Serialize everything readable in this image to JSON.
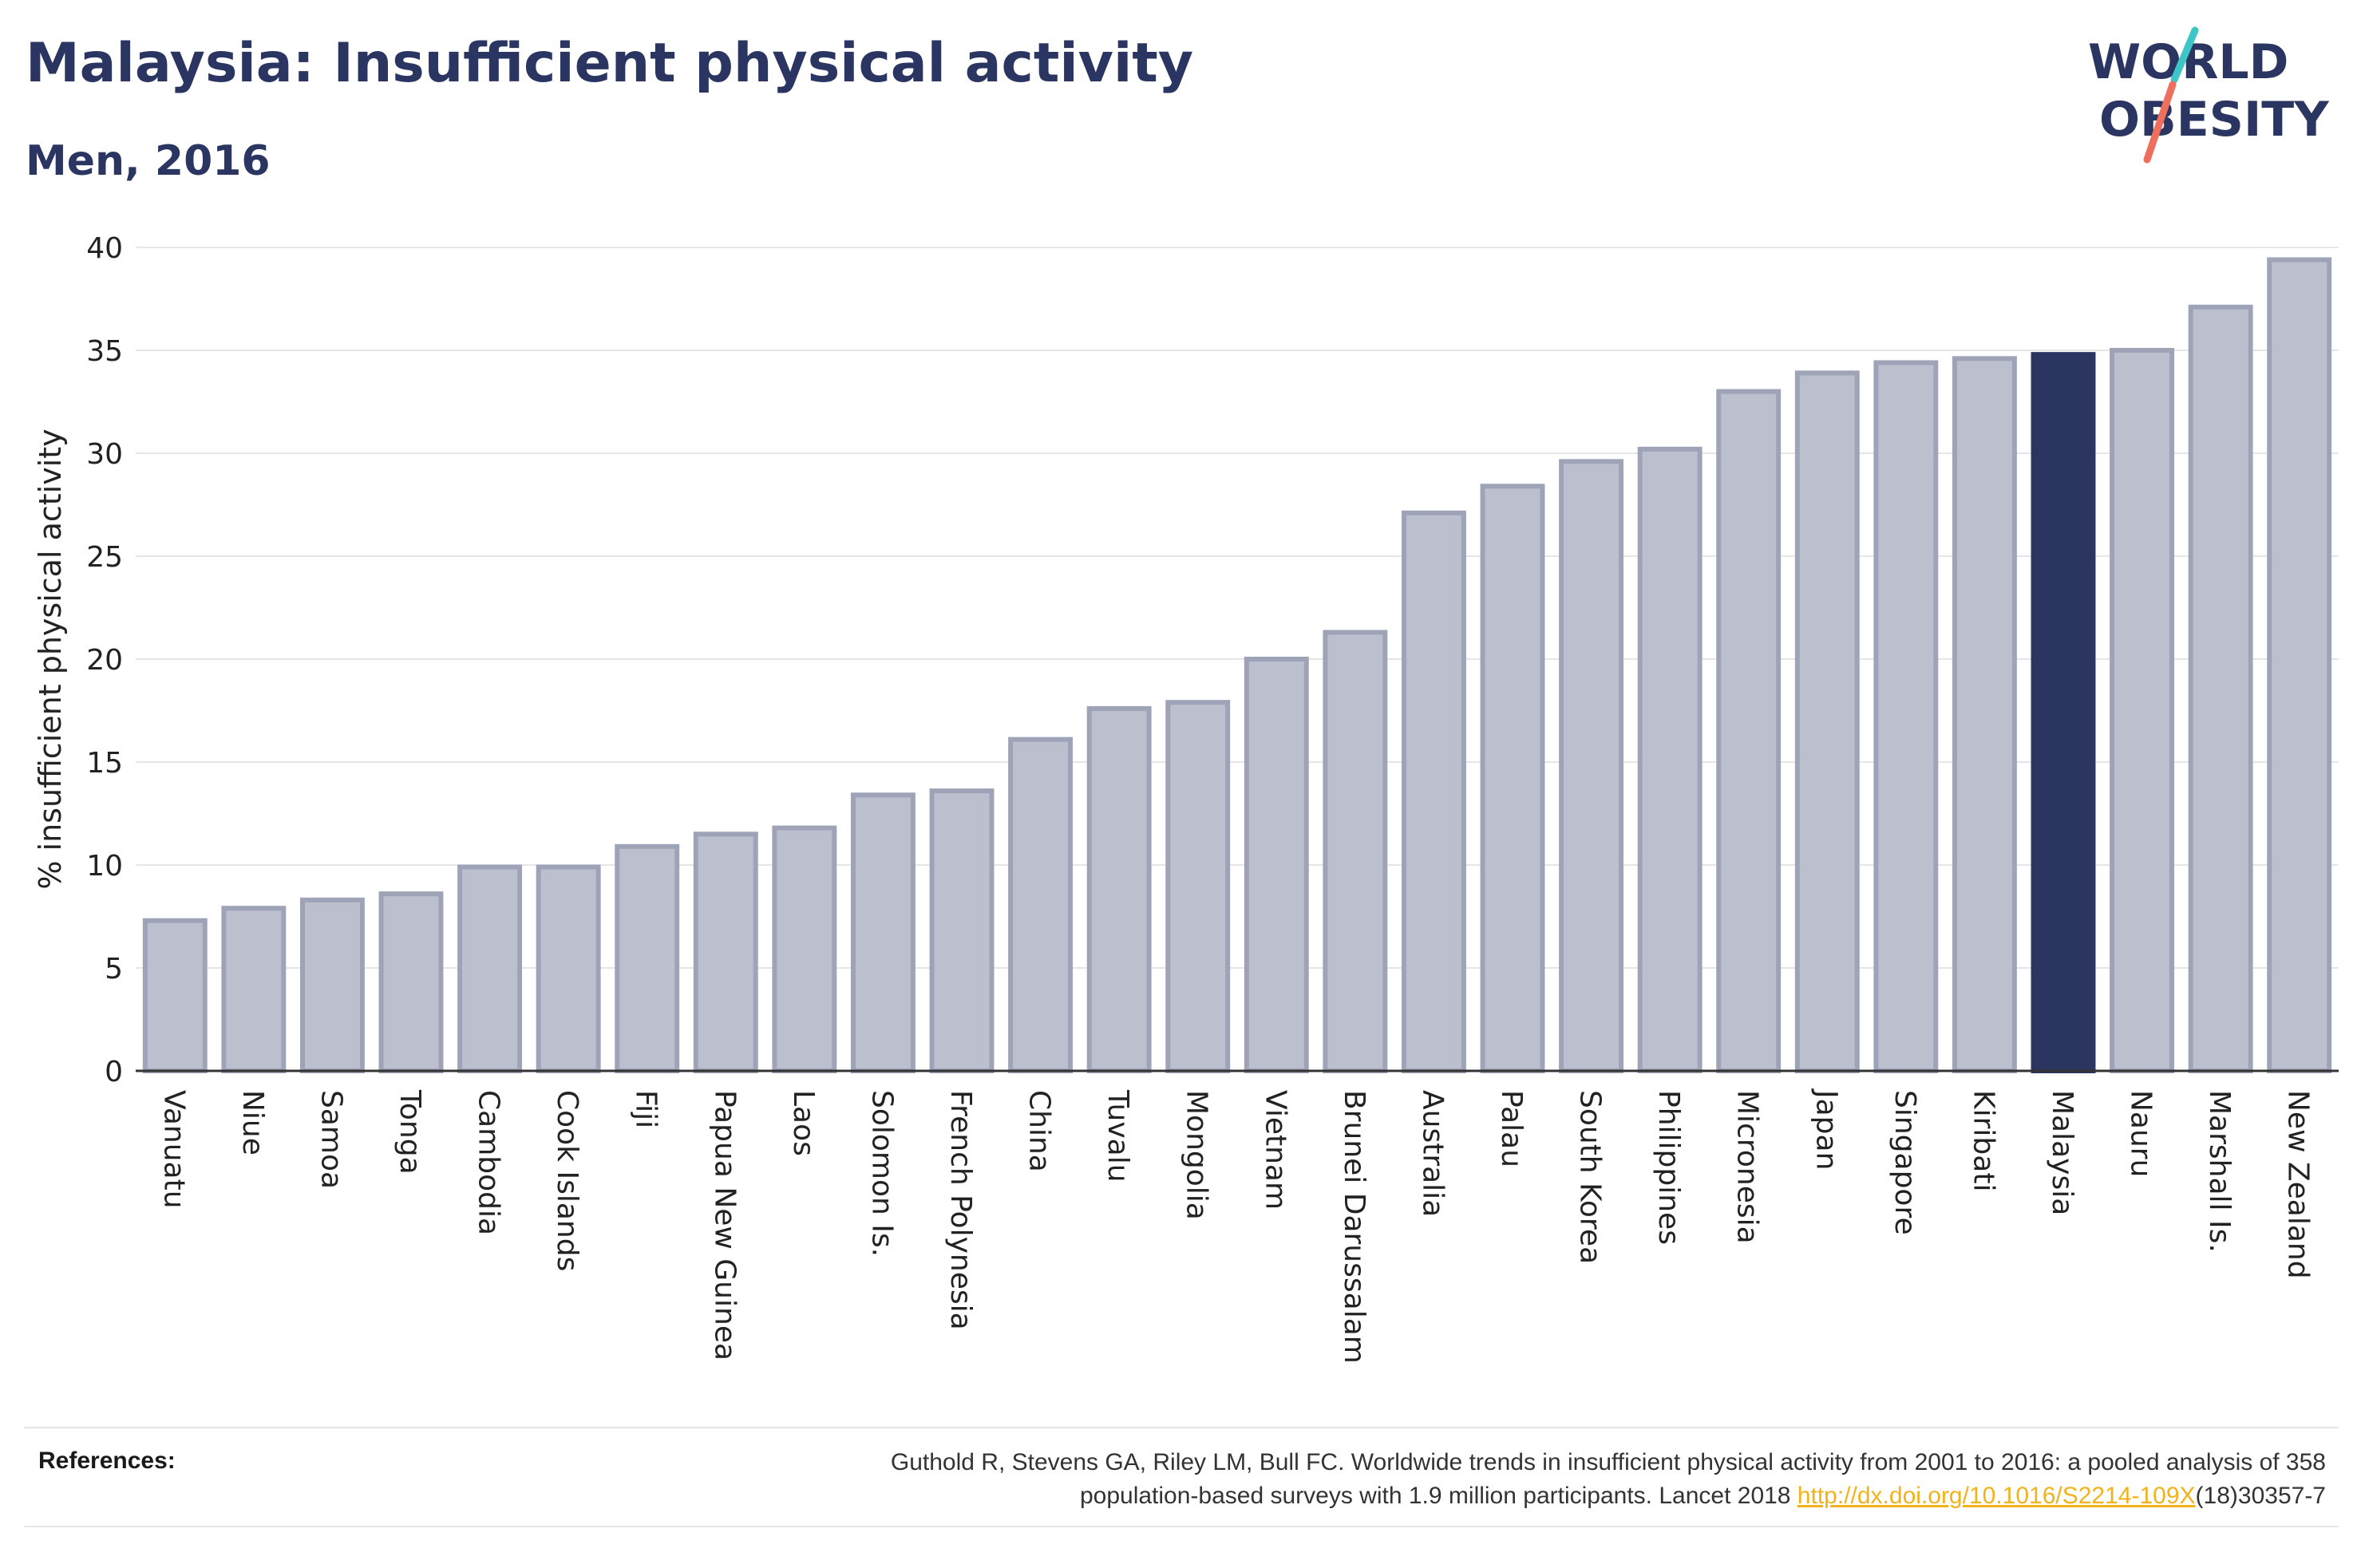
{
  "header": {
    "title": "Malaysia: Insufficient physical activity",
    "subtitle": "Men, 2016"
  },
  "logo": {
    "line1": "WORLD",
    "line2": "OBESITY"
  },
  "colors": {
    "bar": "#bcc0ce",
    "bar_stroke": "#9ea3b8",
    "highlight": "#2b3561",
    "grid": "#e6e6e6",
    "axis": "#333333",
    "logo_text": "#2b3561",
    "logo_teal": "#3ec6c6",
    "logo_coral": "#ef6f5e"
  },
  "chart_data": {
    "type": "bar",
    "title": "Malaysia: Insufficient physical activity",
    "subtitle": "Men, 2016",
    "xlabel": "",
    "ylabel": "% insufficient physical activity",
    "ylim": [
      0,
      40
    ],
    "yticks": [
      0,
      5,
      10,
      15,
      20,
      25,
      30,
      35,
      40
    ],
    "grid": true,
    "highlight": "Malaysia",
    "categories": [
      "Vanuatu",
      "Niue",
      "Samoa",
      "Tonga",
      "Cambodia",
      "Cook Islands",
      "Fiji",
      "Papua New Guinea",
      "Laos",
      "Solomon Is.",
      "French Polynesia",
      "China",
      "Tuvalu",
      "Mongolia",
      "Vietnam",
      "Brunei Darussalam",
      "Australia",
      "Palau",
      "South Korea",
      "Philippines",
      "Micronesia",
      "Japan",
      "Singapore",
      "Kiribati",
      "Malaysia",
      "Nauru",
      "Marshall Is.",
      "New Zealand"
    ],
    "values": [
      7.3,
      7.9,
      8.3,
      8.6,
      9.9,
      9.9,
      10.9,
      11.5,
      11.8,
      13.4,
      13.6,
      16.1,
      17.6,
      17.9,
      20.0,
      21.3,
      27.1,
      28.4,
      29.6,
      30.2,
      33.0,
      33.9,
      34.4,
      34.6,
      34.8,
      35.0,
      37.1,
      39.4
    ]
  },
  "references": {
    "label": "References:",
    "line1": "Guthold R, Stevens GA, Riley LM, Bull FC. Worldwide trends in insufficient physical activity from 2001 to 2016: a pooled analysis of 358",
    "line2_pre": "population-based surveys with 1.9 million participants. Lancet 2018 ",
    "link": "http://dx.doi.org/10.1016/S2214-109X",
    "line2_post": "(18)30357-7"
  }
}
